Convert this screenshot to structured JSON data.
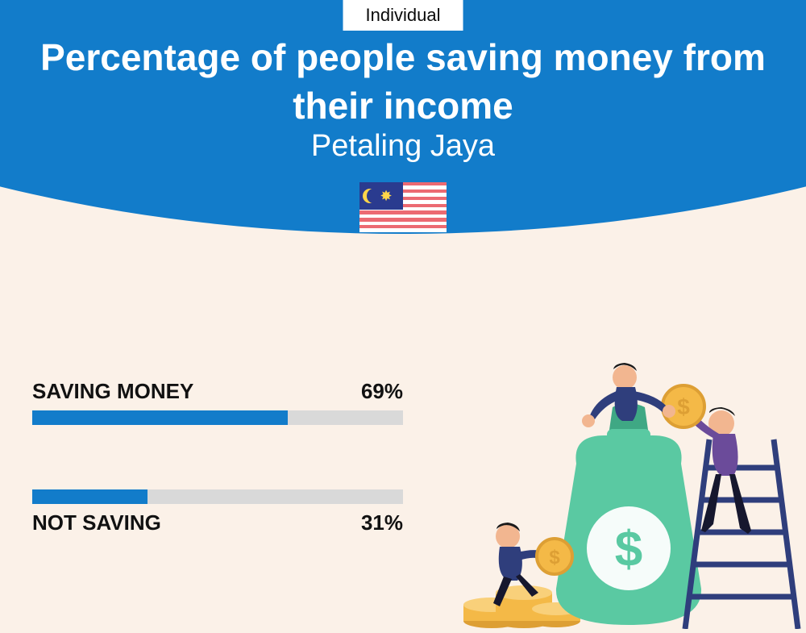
{
  "badge": "Individual",
  "title": "Percentage of people saving money from their income",
  "subtitle": "Petaling Jaya",
  "flag": {
    "stripe_red": "#ec6a72",
    "stripe_white": "#ffffff",
    "canton": "#2a3b8f",
    "emblem": "#ffd54a",
    "stripes": 14
  },
  "colors": {
    "header": "#127cca",
    "background": "#fbf1e8",
    "bar_fill": "#127cca",
    "bar_track": "#d9d9d9",
    "text_dark": "#111111",
    "white": "#ffffff"
  },
  "bars": [
    {
      "label": "SAVING MONEY",
      "value": 69,
      "display": "69%",
      "label_position": "above"
    },
    {
      "label": "NOT SAVING",
      "value": 31,
      "display": "31%",
      "label_position": "below"
    }
  ],
  "illustration": {
    "bag": "#5ac9a2",
    "bag_dark": "#3fa884",
    "coin": "#f4b947",
    "coin_edge": "#dd9f34",
    "ladder": "#2f3e7c",
    "person1": {
      "shirt": "#2f3e7c",
      "pants": "#16172e",
      "skin": "#f2b690",
      "hair": "#1a1a1a"
    },
    "person2": {
      "shirt": "#6b4b9a",
      "pants": "#16172e",
      "skin": "#f2b690",
      "hair": "#1a1a1a"
    },
    "person3": {
      "shirt": "#2f3e7c",
      "pants": "#16172e",
      "skin": "#f2b690",
      "hair": "#1a1a1a"
    }
  }
}
